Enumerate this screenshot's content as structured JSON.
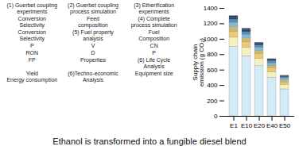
{
  "chart_data": {
    "type": "bar",
    "stacked": true,
    "title": "Ethanol is transformed into a fungible diesel blend",
    "ylabel": "Supply chain\nemission (g CO₂)",
    "categories": [
      "E1",
      "E10",
      "E20",
      "E40",
      "E50"
    ],
    "series": [
      {
        "color": "#d4eaf7",
        "values": [
          900,
          780,
          650,
          500,
          350
        ]
      },
      {
        "color": "#f5f0c0",
        "values": [
          120,
          110,
          95,
          75,
          55
        ]
      },
      {
        "color": "#f0c870",
        "values": [
          80,
          70,
          60,
          48,
          35
        ]
      },
      {
        "color": "#c8b870",
        "values": [
          60,
          52,
          44,
          35,
          25
        ]
      },
      {
        "color": "#85b8d8",
        "values": [
          50,
          44,
          38,
          30,
          22
        ]
      },
      {
        "color": "#5090b8",
        "values": [
          40,
          35,
          30,
          24,
          18
        ]
      },
      {
        "color": "#204878",
        "values": [
          30,
          26,
          22,
          18,
          13
        ]
      },
      {
        "color": "#102848",
        "values": [
          20,
          18,
          15,
          12,
          9
        ]
      }
    ],
    "ylim": [
      0,
      1400
    ],
    "yticks": [
      0,
      200,
      400,
      600,
      800,
      1000,
      1200,
      1400
    ],
    "annotations": [
      "(1) Guerbet coupling\nexperiments",
      "(2) Guerbet coupling\nprocess simulation",
      "(3) Etherification\nexperiments",
      "Conversion\nSelectivity",
      "Feed\ncomposition",
      "(4) Complete\nprocess simulation",
      "Conversion\nSelectivity",
      "(5) Fuel property\nanalysis",
      "Fuel\nComposition",
      "P",
      "V",
      "CN",
      "RON",
      "D",
      "P",
      "FP",
      "Properties",
      "(6) Life Cycle\nAnalysis",
      "Yield\nEnergy consumption",
      "(6)Techno-economic\nAnalysis",
      "Equipment size"
    ]
  }
}
